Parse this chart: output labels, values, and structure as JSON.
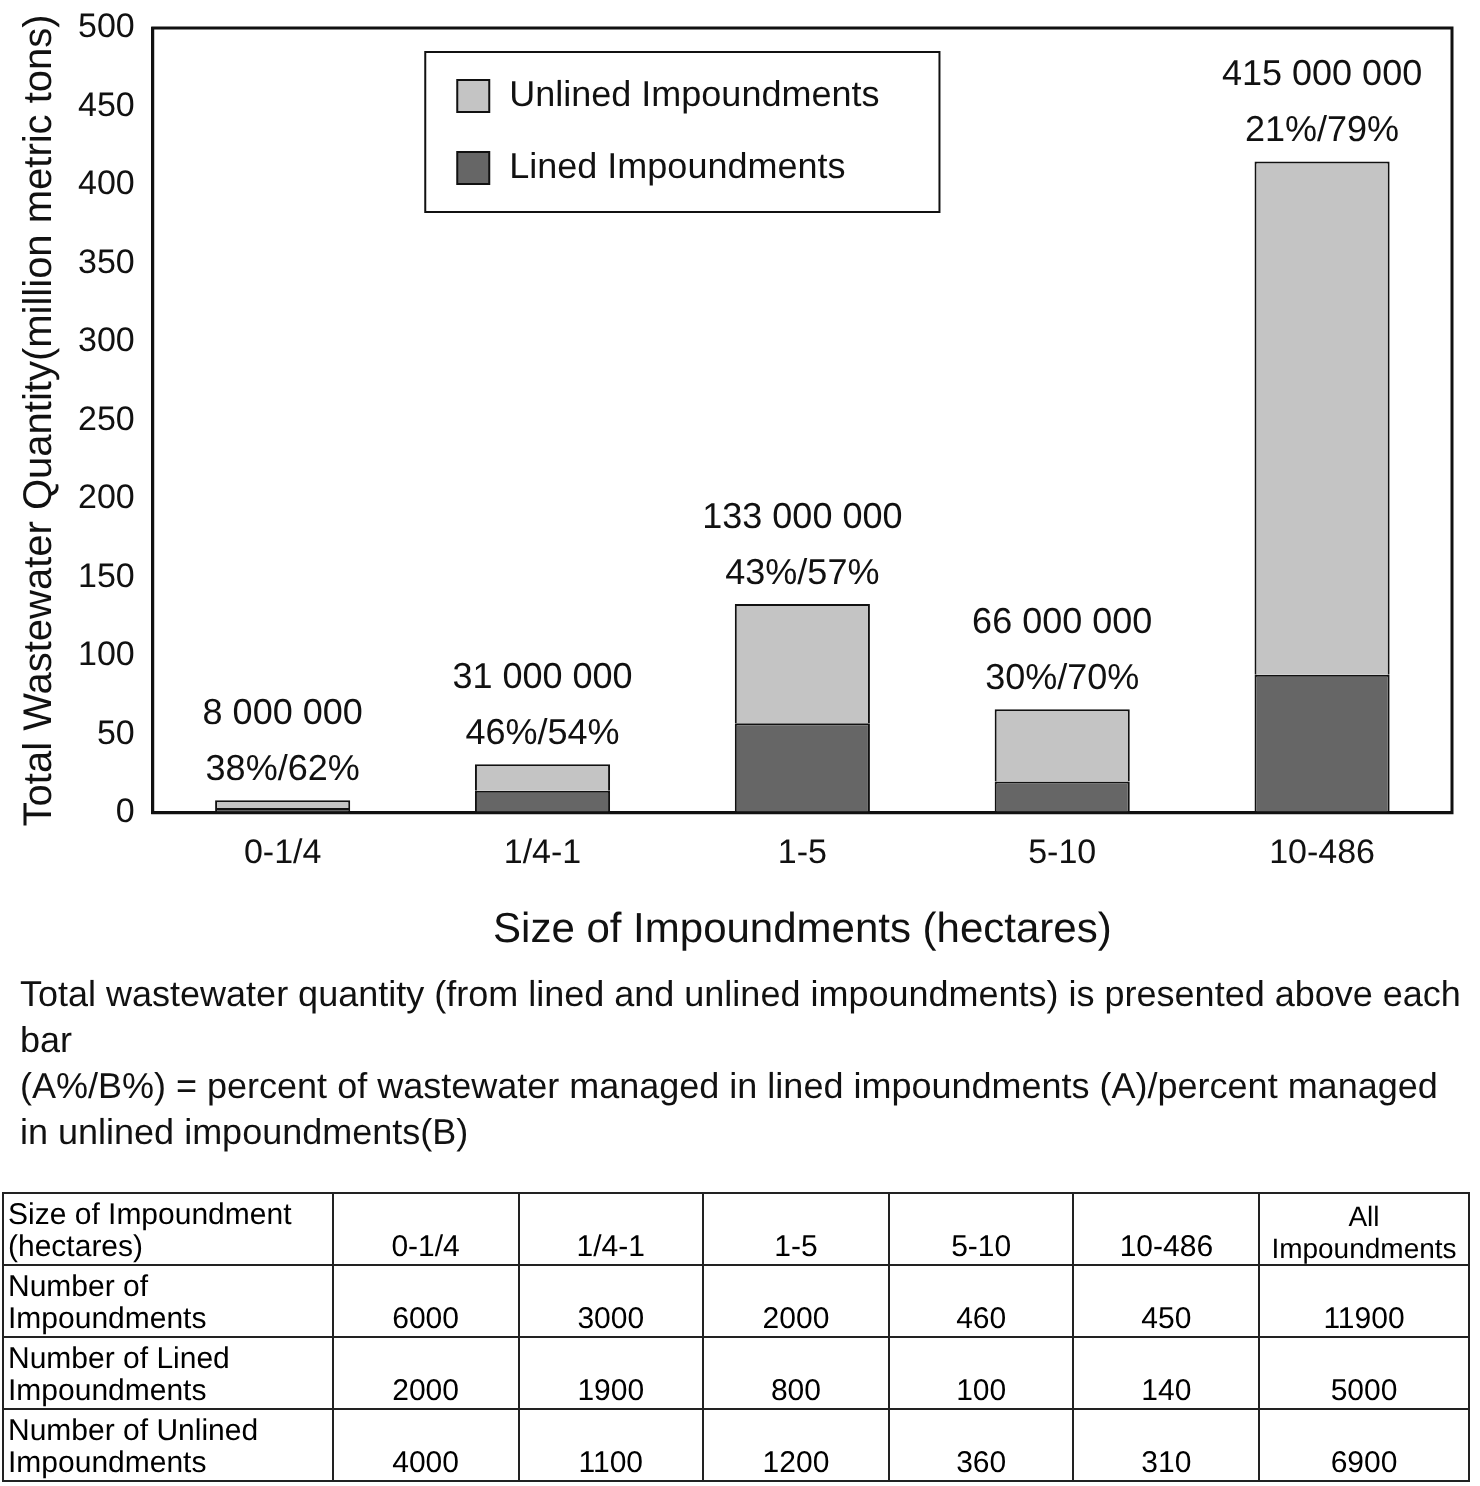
{
  "chart_data": [
    {
      "type": "bar",
      "stacked": true,
      "xlabel": "Size of Impoundments (hectares)",
      "ylabel": "Total Wastewater Quantity(million metric tons)",
      "categories": [
        "0-1/4",
        "1/4-1",
        "1-5",
        "5-10",
        "10-486"
      ],
      "series": [
        {
          "name": "Lined Impoundments",
          "color": "#666666",
          "values": [
            3,
            14,
            57,
            20,
            88
          ]
        },
        {
          "name": "Unlined Impoundments",
          "color": "#c4c4c4",
          "values": [
            5,
            17,
            76,
            46,
            327
          ]
        }
      ],
      "totals": [
        "8 000 000",
        "31 000 000",
        "133 000 000",
        "66 000 000",
        "415 000 000"
      ],
      "ylim": [
        0,
        500
      ],
      "yticks": [
        0,
        50,
        100,
        150,
        200,
        250,
        300,
        350,
        400,
        450,
        500
      ],
      "grid": false,
      "legend": "top",
      "annotations": [
        {
          "text": "38%/62%",
          "x": "0-1/4",
          "y": 8
        },
        {
          "text": "46%/54%",
          "x": "1/4-1",
          "y": 31
        },
        {
          "text": "43%/57%",
          "x": "1-5",
          "y": 133
        },
        {
          "text": "30%/70%",
          "x": "5-10",
          "y": 66
        },
        {
          "text": "21%/79%",
          "x": "10-486",
          "y": 415
        },
        "Total wastewater quantity (from lined and unlined impoundments) is presented above each bar",
        "(A%/B%) = percent of wastewater managed in lined impoundments (A)/percent managed in unlined impoundments(B)"
      ]
    },
    {
      "type": "heatmap",
      "title": "Size of Impoundment (hectares)",
      "data_labels": true,
      "categories": [
        "0-1/4",
        "1/4-1",
        "1-5",
        "5-10",
        "10-486",
        "All Impoundments"
      ],
      "y_categories": [
        "Number of Impoundments",
        "Number of Lined Impoundments",
        "Number of Unlined Impoundments"
      ],
      "cells": [
        [
          6000,
          3000,
          2000,
          460,
          450,
          11900
        ],
        [
          2000,
          1900,
          800,
          100,
          140,
          5000
        ],
        [
          4000,
          1100,
          1200,
          360,
          310,
          6900
        ]
      ]
    }
  ]
}
